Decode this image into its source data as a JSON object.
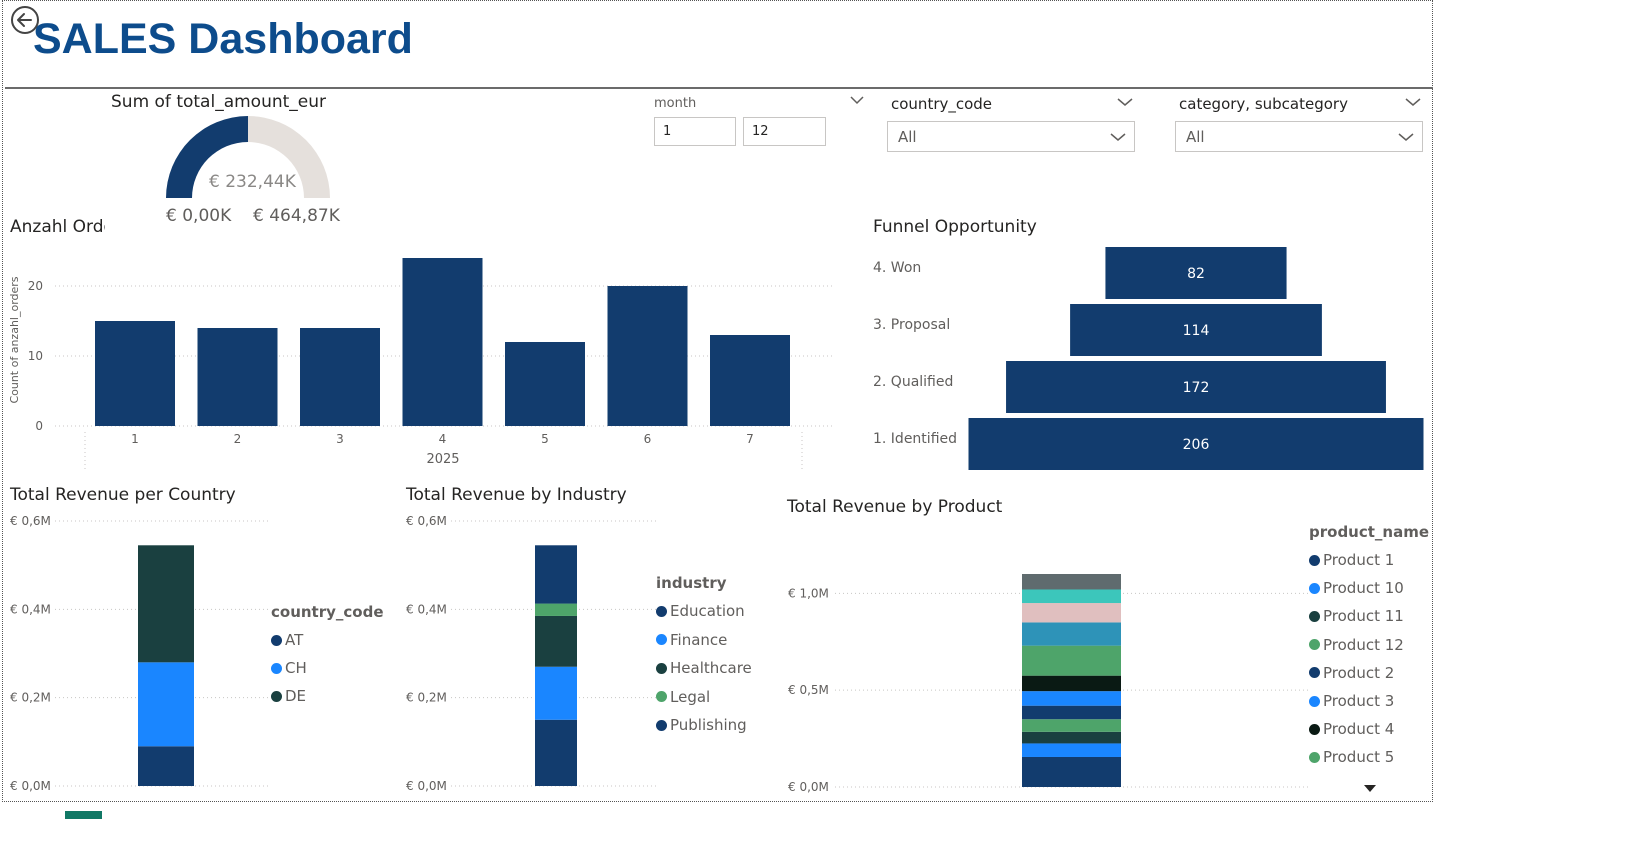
{
  "header": {
    "title": "SALES Dashboard",
    "back_icon": "back-arrow-icon"
  },
  "gauge": {
    "title": "Sum of total_amount_eur",
    "value_label": "€ 232,44K",
    "min_label": "€ 0,00K",
    "max_label": "€ 464,87K",
    "value": 232.44,
    "max": 464.87,
    "fill_color": "#123c6e",
    "track_color": "#e5e0dc"
  },
  "slicers": {
    "month": {
      "label": "month",
      "from": "1",
      "to": "12"
    },
    "country": {
      "label": "country_code",
      "value": "All"
    },
    "category": {
      "label": "category, subcategory",
      "value": "All"
    }
  },
  "orders_chart": {
    "title": "Anzahl Orde",
    "ylabel": "Count of anzahl_orders",
    "year_label": "2025"
  },
  "funnel": {
    "title": "Funnel Opportunity"
  },
  "country_chart": {
    "title": "Total Revenue per Country",
    "legend_title": "country_code"
  },
  "industry_chart": {
    "title": "Total Revenue by Industry",
    "legend_title": "industry"
  },
  "product_chart": {
    "title": "Total Revenue by Product",
    "legend_title": "product_name"
  },
  "chart_data": [
    {
      "id": "orders",
      "type": "bar",
      "title": "Anzahl Orde",
      "xlabel": "2025",
      "ylabel": "Count of anzahl_orders",
      "categories": [
        "1",
        "2",
        "3",
        "4",
        "5",
        "6",
        "7"
      ],
      "values": [
        15,
        14,
        14,
        24,
        12,
        20,
        13
      ],
      "yticks": [
        "0",
        "10",
        "20"
      ],
      "ylim": [
        0,
        24
      ],
      "grid": true,
      "color": "#123c6e"
    },
    {
      "id": "funnel",
      "type": "bar",
      "subtype": "funnel",
      "title": "Funnel Opportunity",
      "categories": [
        "4. Won",
        "3. Proposal",
        "2. Qualified",
        "1. Identified"
      ],
      "values": [
        82,
        114,
        172,
        206
      ],
      "color": "#123c6e"
    },
    {
      "id": "country",
      "type": "bar",
      "subtype": "stacked",
      "title": "Total Revenue per Country",
      "yticks": [
        "€ 0,0M",
        "€ 0,2M",
        "€ 0,4M",
        "€ 0,6M"
      ],
      "ylim": [
        0,
        0.6
      ],
      "series": [
        {
          "name": "AT",
          "value": 0.09,
          "color": "#123c6e"
        },
        {
          "name": "CH",
          "value": 0.19,
          "color": "#1a86ff"
        },
        {
          "name": "DE",
          "value": 0.265,
          "color": "#1a4040"
        }
      ]
    },
    {
      "id": "industry",
      "type": "bar",
      "subtype": "stacked",
      "title": "Total Revenue by Industry",
      "yticks": [
        "€ 0,0M",
        "€ 0,2M",
        "€ 0,4M",
        "€ 0,6M"
      ],
      "ylim": [
        0,
        0.6
      ],
      "series": [
        {
          "name": "Education",
          "value": 0.15,
          "color": "#123c6e"
        },
        {
          "name": "Finance",
          "value": 0.12,
          "color": "#1a86ff"
        },
        {
          "name": "Healthcare",
          "value": 0.115,
          "color": "#1a4040"
        },
        {
          "name": "Legal",
          "value": 0.028,
          "color": "#4ea46a"
        },
        {
          "name": "Publishing",
          "value": 0.132,
          "color": "#123c6e"
        }
      ]
    },
    {
      "id": "product",
      "type": "bar",
      "subtype": "stacked",
      "title": "Total Revenue by Product",
      "yticks": [
        "€ 0,0M",
        "€ 0,5M",
        "€ 1,0M"
      ],
      "ylim": [
        0,
        1.1
      ],
      "legend_scroll_icon": "scroll-down-triangle-icon",
      "series": [
        {
          "name": "Product 1",
          "value": 0.155,
          "color": "#123c6e"
        },
        {
          "name": "Product 10",
          "value": 0.07,
          "color": "#1a86ff"
        },
        {
          "name": "Product 11",
          "value": 0.06,
          "color": "#1a4040"
        },
        {
          "name": "Product 12",
          "value": 0.065,
          "color": "#4ea46a"
        },
        {
          "name": "Product 2",
          "value": 0.07,
          "color": "#123c6e"
        },
        {
          "name": "Product 3",
          "value": 0.075,
          "color": "#1a86ff"
        },
        {
          "name": "Product 4",
          "value": 0.08,
          "color": "#0a1a14"
        },
        {
          "name": "Product 5",
          "value": 0.155,
          "color": "#4ea46a"
        },
        {
          "name": "",
          "value": 0.12,
          "color": "#2e93b8"
        },
        {
          "name": "",
          "value": 0.1,
          "color": "#e0bfbf"
        },
        {
          "name": "",
          "value": 0.07,
          "color": "#3cc6bb"
        },
        {
          "name": "",
          "value": 0.08,
          "color": "#5f6b6e"
        }
      ]
    }
  ]
}
